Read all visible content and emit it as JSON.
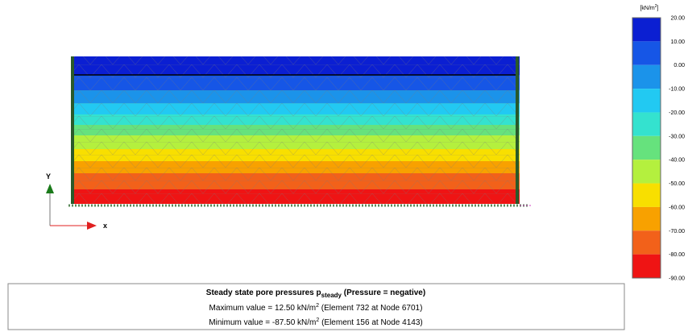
{
  "legend": {
    "unit": "[kN/m",
    "unit_sup": "2",
    "unit_end": "]",
    "ticks": [
      "20.00",
      "10.00",
      "0.00",
      "-10.00",
      "-20.00",
      "-30.00",
      "-40.00",
      "-50.00",
      "-60.00",
      "-70.00",
      "-80.00",
      "-90.00"
    ],
    "colors": [
      "#0b1fd2",
      "#1656e6",
      "#1b93ea",
      "#22c9f2",
      "#34e2cf",
      "#66e27d",
      "#b4f03e",
      "#f8df00",
      "#f8a100",
      "#f2611a",
      "#ef1414"
    ]
  },
  "axes": {
    "y": "Y",
    "x": "x"
  },
  "caption": {
    "title": "Steady state pore pressures p",
    "title_sub": "steady",
    "title_end": "  (Pressure = negative)",
    "max": "Maximum value = 12.50 kN/m",
    "max_sup": "2",
    "max_end": " (Element 732 at Node 6701)",
    "min": "Minimum value = -87.50 kN/m",
    "min_sup": "2",
    "min_end": " (Element 156 at Node 4143)"
  }
}
